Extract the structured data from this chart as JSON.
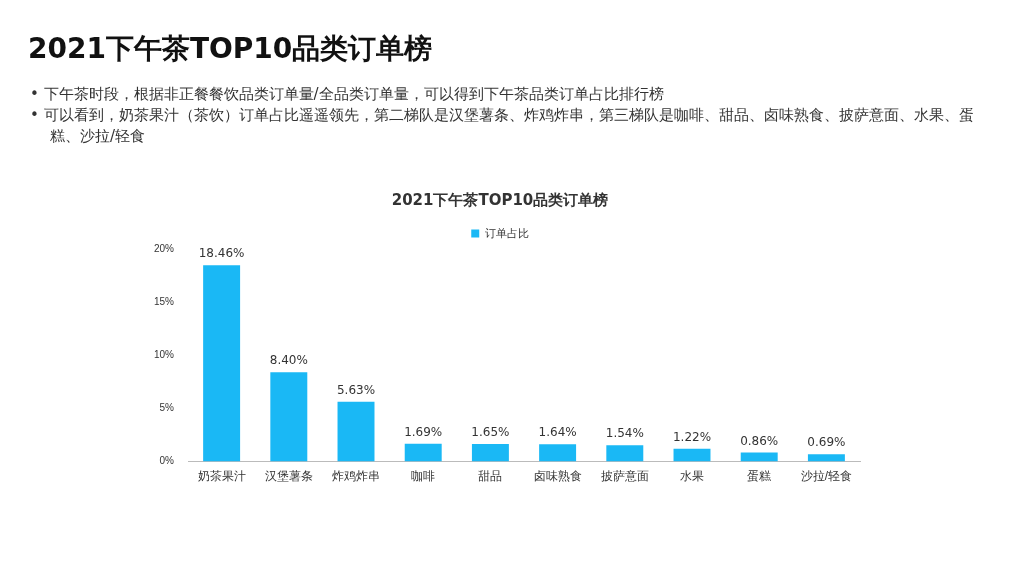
{
  "chart_data": {
    "type": "bar",
    "title": "2021下午茶TOP10品类订单榜",
    "subtitle": "2021下午茶TOP10品类订单榜",
    "annotations": [
      "•  下午茶时段，根据非正餐餐饮品类订单量/全品类订单量，可以得到下午茶品类订单占比排行榜",
      "•  可以看到，奶茶果汁（茶饮）订单占比遥遥领先，第二梯队是汉堡薯条、炸鸡炸串，第三梯队是咖啡、甜品、卤味熟食、披萨意面、水果、蛋糕、沙拉/轻食"
    ],
    "categories": [
      "奶茶果汁",
      "汉堡薯条",
      "炸鸡炸串",
      "咖啡",
      "甜品",
      "卤味熟食",
      "披萨意面",
      "水果",
      "蛋糕",
      "沙拉/轻食"
    ],
    "series": [
      {
        "name": "订单占比",
        "color": "#1ab8f5",
        "values": [
          18.46,
          8.4,
          5.63,
          1.69,
          1.65,
          1.64,
          1.54,
          1.22,
          0.86,
          0.69
        ],
        "value_labels": [
          "18.46%",
          "8.40%",
          "5.63%",
          "1.69%",
          "1.65%",
          "1.64%",
          "1.54%",
          "1.22%",
          "0.86%",
          "0.69%"
        ]
      }
    ],
    "ylim": [
      0,
      20
    ],
    "yticks": [
      {
        "value": 0,
        "label": "0%"
      },
      {
        "value": 5,
        "label": "5%"
      },
      {
        "value": 10,
        "label": "10%"
      },
      {
        "value": 15,
        "label": "15%"
      },
      {
        "value": 20,
        "label": "20%"
      }
    ],
    "grid": false,
    "legend": "top"
  }
}
